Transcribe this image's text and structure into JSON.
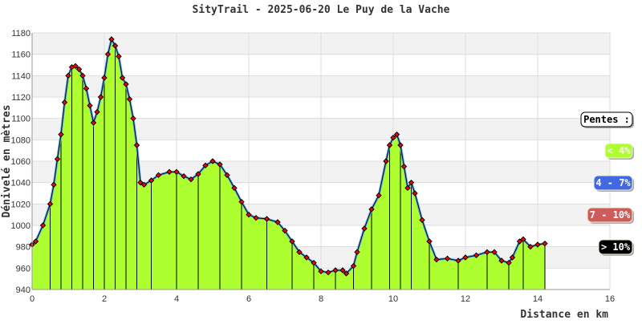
{
  "chart_data": {
    "type": "area",
    "title": "SityTrail - 2025-06-20 Le Puy de la Vache",
    "xlabel": "Distance en km",
    "ylabel": "Dénivelé en mètres",
    "xlim": [
      0,
      16
    ],
    "ylim": [
      940,
      1180
    ],
    "xticks": [
      0,
      2,
      4,
      6,
      8,
      10,
      12,
      14,
      16
    ],
    "yticks": [
      940,
      960,
      980,
      1000,
      1020,
      1040,
      1060,
      1080,
      1100,
      1120,
      1140,
      1160,
      1180
    ],
    "grid": true,
    "x": [
      0,
      0.1,
      0.3,
      0.5,
      0.6,
      0.7,
      0.8,
      0.9,
      1.0,
      1.1,
      1.2,
      1.3,
      1.4,
      1.5,
      1.6,
      1.7,
      1.8,
      1.9,
      2.0,
      2.1,
      2.2,
      2.3,
      2.4,
      2.5,
      2.6,
      2.7,
      2.8,
      2.9,
      3.0,
      3.1,
      3.3,
      3.5,
      3.8,
      4.0,
      4.2,
      4.4,
      4.6,
      4.8,
      5.0,
      5.2,
      5.4,
      5.6,
      5.8,
      6.0,
      6.2,
      6.5,
      6.8,
      7.0,
      7.2,
      7.4,
      7.6,
      7.8,
      8.0,
      8.2,
      8.4,
      8.6,
      8.7,
      8.9,
      9.0,
      9.2,
      9.4,
      9.6,
      9.8,
      9.9,
      10.0,
      10.1,
      10.2,
      10.3,
      10.4,
      10.5,
      10.6,
      10.8,
      11.0,
      11.2,
      11.5,
      11.8,
      12.0,
      12.3,
      12.6,
      12.8,
      13.0,
      13.2,
      13.3,
      13.5,
      13.6,
      13.8,
      14.0,
      14.2
    ],
    "y": [
      982,
      985,
      1000,
      1020,
      1038,
      1062,
      1085,
      1115,
      1140,
      1148,
      1149,
      1146,
      1140,
      1128,
      1112,
      1096,
      1106,
      1120,
      1138,
      1160,
      1174,
      1168,
      1158,
      1138,
      1132,
      1118,
      1100,
      1075,
      1040,
      1038,
      1042,
      1047,
      1050,
      1050,
      1046,
      1043,
      1048,
      1056,
      1060,
      1057,
      1047,
      1035,
      1022,
      1010,
      1007,
      1006,
      1003,
      995,
      985,
      975,
      970,
      965,
      957,
      956,
      958,
      958,
      955,
      962,
      975,
      997,
      1015,
      1028,
      1060,
      1075,
      1082,
      1085,
      1075,
      1055,
      1035,
      1040,
      1030,
      1005,
      985,
      968,
      969,
      967,
      970,
      972,
      975,
      975,
      967,
      965,
      970,
      985,
      987,
      980,
      982,
      983
    ],
    "legend": {
      "title": "Pentes :",
      "placement": "right",
      "items": [
        {
          "label": "< 4%",
          "color": "#adff2f"
        },
        {
          "label": "4 - 7%",
          "color": "#4169e1"
        },
        {
          "label": "7 - 10%",
          "color": "#cd5c5c"
        },
        {
          "label": "> 10%",
          "color": "#000000"
        }
      ]
    },
    "colors": {
      "fill": "#adff2f",
      "line": "#5aaaf0",
      "marker": "#ff0000"
    }
  }
}
